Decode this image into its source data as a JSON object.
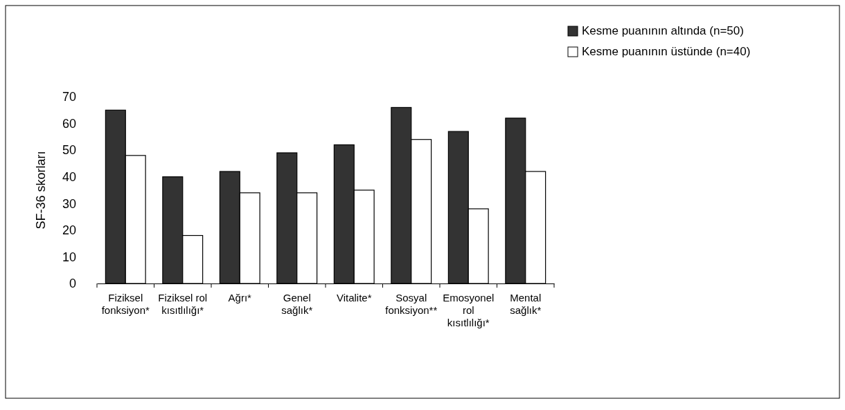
{
  "chart_data": {
    "type": "bar",
    "ylabel": "SF-36 skorları",
    "categories": [
      "Fiziksel fonksiyon*",
      "Fiziksel rol kısıtlılığı*",
      "Ağrı*",
      "Genel sağlık*",
      "Vitalite*",
      "Sosyal fonksiyon**",
      "Emosyonel rol kısıtlılığı*",
      "Mental sağlık*"
    ],
    "series": [
      {
        "name": "Kesme puanının altında (n=50)",
        "color": "#333333",
        "values": [
          65,
          40,
          42,
          49,
          52,
          66,
          57,
          62
        ]
      },
      {
        "name": "Kesme puanının üstünde (n=40)",
        "color": "#ffffff",
        "values": [
          48,
          18,
          34,
          34,
          35,
          54,
          28,
          42
        ]
      }
    ],
    "ylim": [
      0,
      70
    ],
    "yticks": [
      0,
      10,
      20,
      30,
      40,
      50,
      60,
      70
    ],
    "grid": false,
    "legend": "top right"
  }
}
